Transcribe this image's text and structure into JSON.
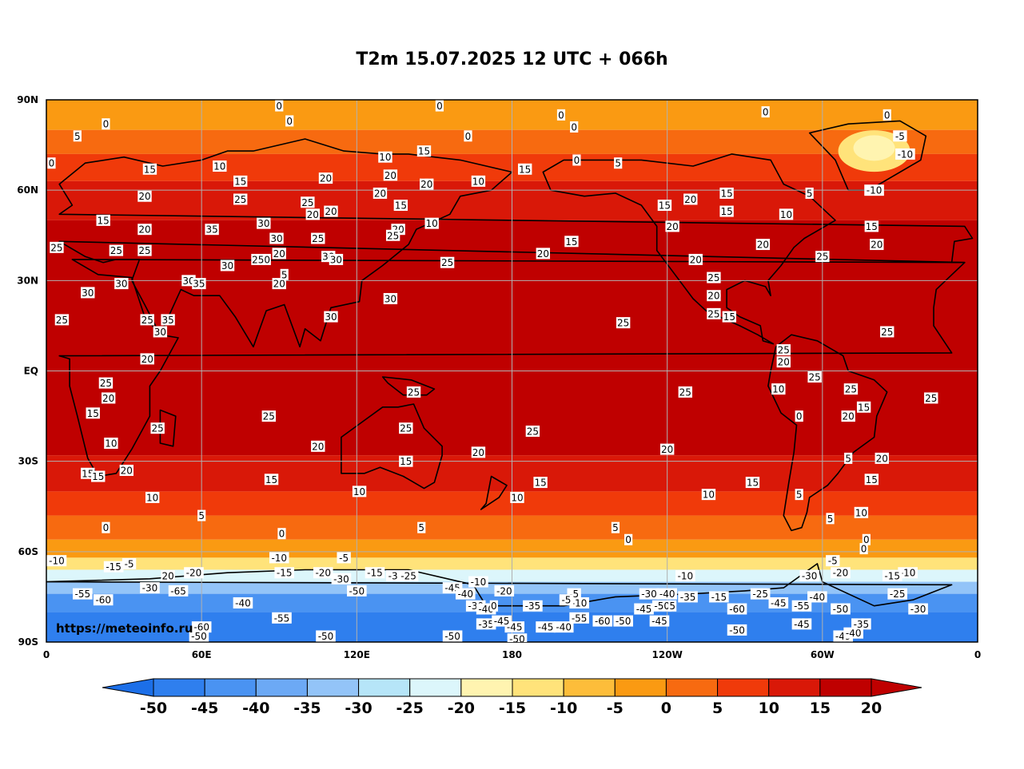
{
  "title": "T2m 15.07.2025 12 UTC + 066h",
  "watermark": "https://meteoinfo.ru",
  "lat_ticks": [
    "90N",
    "60N",
    "30N",
    "EQ",
    "30S",
    "60S",
    "90S"
  ],
  "lon_ticks": [
    "0",
    "60E",
    "120E",
    "180",
    "120W",
    "60W",
    "0"
  ],
  "colorbar": {
    "ticks": [
      "-50",
      "-45",
      "-40",
      "-35",
      "-30",
      "-25",
      "-20",
      "-15",
      "-10",
      "-5",
      "0",
      "5",
      "10",
      "15",
      "20"
    ],
    "colors": [
      "#1c6fe8",
      "#2f7fee",
      "#4a93f2",
      "#6ca9f5",
      "#93c4f8",
      "#b6e5f8",
      "#dcf6fb",
      "#fff4b0",
      "#ffe37a",
      "#fdbd3a",
      "#fa9a12",
      "#f76a10",
      "#f03a0a",
      "#d91808",
      "#bf0000"
    ],
    "under_color": "#1c6fe8",
    "over_color": "#bf0000"
  },
  "map_labels": [
    {
      "t": "0",
      "lon": 90,
      "lat": 88
    },
    {
      "t": "0",
      "lon": 152,
      "lat": 88
    },
    {
      "t": "0",
      "lon": -161,
      "lat": 85
    },
    {
      "t": "0",
      "lon": -82,
      "lat": 86
    },
    {
      "t": "0",
      "lon": -35,
      "lat": 85
    },
    {
      "t": "0",
      "lon": 23,
      "lat": 82
    },
    {
      "t": "0",
      "lon": 94,
      "lat": 83
    },
    {
      "t": "0",
      "lon": 163,
      "lat": 78
    },
    {
      "t": "0",
      "lon": -156,
      "lat": 81
    },
    {
      "t": "5",
      "lon": 12,
      "lat": 78
    },
    {
      "t": "-5",
      "lon": -30,
      "lat": 78
    },
    {
      "t": "-10",
      "lon": -28,
      "lat": 72
    },
    {
      "t": "0",
      "lon": 2,
      "lat": 69
    },
    {
      "t": "15",
      "lon": 40,
      "lat": 67
    },
    {
      "t": "10",
      "lon": 67,
      "lat": 68
    },
    {
      "t": "15",
      "lon": 75,
      "lat": 63
    },
    {
      "t": "10",
      "lon": 131,
      "lat": 71
    },
    {
      "t": "15",
      "lon": 146,
      "lat": 73
    },
    {
      "t": "20",
      "lon": 133,
      "lat": 65
    },
    {
      "t": "20",
      "lon": 147,
      "lat": 62
    },
    {
      "t": "10",
      "lon": 167,
      "lat": 63
    },
    {
      "t": "15",
      "lon": -175,
      "lat": 67
    },
    {
      "t": "0",
      "lon": -155,
      "lat": 70
    },
    {
      "t": "5",
      "lon": -139,
      "lat": 69
    },
    {
      "t": "15",
      "lon": -121,
      "lat": 55
    },
    {
      "t": "20",
      "lon": -111,
      "lat": 57
    },
    {
      "t": "15",
      "lon": -97,
      "lat": 59
    },
    {
      "t": "15",
      "lon": -97,
      "lat": 53
    },
    {
      "t": "5",
      "lon": -65,
      "lat": 59
    },
    {
      "t": "-10",
      "lon": -40,
      "lat": 60
    },
    {
      "t": "10",
      "lon": -74,
      "lat": 52
    },
    {
      "t": "15",
      "lon": -41,
      "lat": 48
    },
    {
      "t": "20",
      "lon": -39,
      "lat": 42
    },
    {
      "t": "20",
      "lon": -83,
      "lat": 42
    },
    {
      "t": "25",
      "lon": -60,
      "lat": 38
    },
    {
      "t": "20",
      "lon": -118,
      "lat": 48
    },
    {
      "t": "20",
      "lon": -109,
      "lat": 37
    },
    {
      "t": "15",
      "lon": -157,
      "lat": 43
    },
    {
      "t": "20",
      "lon": -168,
      "lat": 39
    },
    {
      "t": "25",
      "lon": 155,
      "lat": 36
    },
    {
      "t": "10",
      "lon": 149,
      "lat": 49
    },
    {
      "t": "20",
      "lon": 38,
      "lat": 58
    },
    {
      "t": "15",
      "lon": 22,
      "lat": 50
    },
    {
      "t": "20",
      "lon": 38,
      "lat": 47
    },
    {
      "t": "25",
      "lon": 4,
      "lat": 41
    },
    {
      "t": "25",
      "lon": 27,
      "lat": 40
    },
    {
      "t": "25",
      "lon": 38,
      "lat": 40
    },
    {
      "t": "35",
      "lon": 64,
      "lat": 47
    },
    {
      "t": "25",
      "lon": 75,
      "lat": 57
    },
    {
      "t": "30",
      "lon": 84,
      "lat": 49
    },
    {
      "t": "30",
      "lon": 89,
      "lat": 44
    },
    {
      "t": "20",
      "lon": 90,
      "lat": 39
    },
    {
      "t": "250",
      "lon": 83,
      "lat": 37
    },
    {
      "t": "30",
      "lon": 70,
      "lat": 35
    },
    {
      "t": "20",
      "lon": 90,
      "lat": 29
    },
    {
      "t": "5",
      "lon": 92,
      "lat": 32
    },
    {
      "t": "25",
      "lon": 101,
      "lat": 56
    },
    {
      "t": "20",
      "lon": 103,
      "lat": 52
    },
    {
      "t": "20",
      "lon": 110,
      "lat": 53
    },
    {
      "t": "25",
      "lon": 105,
      "lat": 44
    },
    {
      "t": "30",
      "lon": 109,
      "lat": 38
    },
    {
      "t": "30",
      "lon": 112,
      "lat": 37
    },
    {
      "t": "20",
      "lon": 108,
      "lat": 64
    },
    {
      "t": "20",
      "lon": 129,
      "lat": 59
    },
    {
      "t": "15",
      "lon": 137,
      "lat": 55
    },
    {
      "t": "20",
      "lon": 136,
      "lat": 47
    },
    {
      "t": "25",
      "lon": 134,
      "lat": 45
    },
    {
      "t": "30",
      "lon": 16,
      "lat": 26
    },
    {
      "t": "30",
      "lon": 29,
      "lat": 29
    },
    {
      "t": "30",
      "lon": 55,
      "lat": 30
    },
    {
      "t": "35",
      "lon": 59,
      "lat": 29
    },
    {
      "t": "25",
      "lon": 6,
      "lat": 17
    },
    {
      "t": "25",
      "lon": 39,
      "lat": 17
    },
    {
      "t": "35",
      "lon": 47,
      "lat": 17
    },
    {
      "t": "30",
      "lon": 44,
      "lat": 13
    },
    {
      "t": "30",
      "lon": 110,
      "lat": 18
    },
    {
      "t": "30",
      "lon": 133,
      "lat": 24
    },
    {
      "t": "20",
      "lon": 39,
      "lat": 4
    },
    {
      "t": "25",
      "lon": 23,
      "lat": -4
    },
    {
      "t": "20",
      "lon": 24,
      "lat": -9
    },
    {
      "t": "15",
      "lon": 18,
      "lat": -14
    },
    {
      "t": "25",
      "lon": 43,
      "lat": -19
    },
    {
      "t": "10",
      "lon": 25,
      "lat": -24
    },
    {
      "t": "15",
      "lon": 16,
      "lat": -34
    },
    {
      "t": "15",
      "lon": 20,
      "lat": -35
    },
    {
      "t": "20",
      "lon": 31,
      "lat": -33
    },
    {
      "t": "10",
      "lon": 41,
      "lat": -42
    },
    {
      "t": "0",
      "lon": 23,
      "lat": -52
    },
    {
      "t": "5",
      "lon": 60,
      "lat": -48
    },
    {
      "t": "25",
      "lon": 86,
      "lat": -15
    },
    {
      "t": "20",
      "lon": 105,
      "lat": -25
    },
    {
      "t": "15",
      "lon": 87,
      "lat": -36
    },
    {
      "t": "10",
      "lon": 121,
      "lat": -40
    },
    {
      "t": "25",
      "lon": 142,
      "lat": -7
    },
    {
      "t": "25",
      "lon": 139,
      "lat": -19
    },
    {
      "t": "15",
      "lon": 139,
      "lat": -30
    },
    {
      "t": "20",
      "lon": 167,
      "lat": -27
    },
    {
      "t": "25",
      "lon": -172,
      "lat": -20
    },
    {
      "t": "15",
      "lon": -169,
      "lat": -37
    },
    {
      "t": "10",
      "lon": -178,
      "lat": -42
    },
    {
      "t": "5",
      "lon": 145,
      "lat": -52
    },
    {
      "t": "0",
      "lon": 91,
      "lat": -54
    },
    {
      "t": "25",
      "lon": -137,
      "lat": 16
    },
    {
      "t": "25",
      "lon": -113,
      "lat": -7
    },
    {
      "t": "20",
      "lon": -120,
      "lat": -26
    },
    {
      "t": "5",
      "lon": -140,
      "lat": -52
    },
    {
      "t": "0",
      "lon": -135,
      "lat": -56
    },
    {
      "t": "15",
      "lon": -87,
      "lat": -37
    },
    {
      "t": "10",
      "lon": -104,
      "lat": -41
    },
    {
      "t": "25",
      "lon": -102,
      "lat": 31
    },
    {
      "t": "20",
      "lon": -102,
      "lat": 25
    },
    {
      "t": "25",
      "lon": -102,
      "lat": 19
    },
    {
      "t": "15",
      "lon": -96,
      "lat": 18
    },
    {
      "t": "25",
      "lon": -75,
      "lat": 7
    },
    {
      "t": "20",
      "lon": -75,
      "lat": 3
    },
    {
      "t": "25",
      "lon": -63,
      "lat": -2
    },
    {
      "t": "10",
      "lon": -77,
      "lat": -6
    },
    {
      "t": "0",
      "lon": -69,
      "lat": -15
    },
    {
      "t": "25",
      "lon": -49,
      "lat": -6
    },
    {
      "t": "20",
      "lon": -50,
      "lat": -15
    },
    {
      "t": "15",
      "lon": -44,
      "lat": -12
    },
    {
      "t": "20",
      "lon": -37,
      "lat": -29
    },
    {
      "t": "5",
      "lon": -50,
      "lat": -29
    },
    {
      "t": "15",
      "lon": -41,
      "lat": -36
    },
    {
      "t": "5",
      "lon": -69,
      "lat": -41
    },
    {
      "t": "5",
      "lon": -57,
      "lat": -49
    },
    {
      "t": "10",
      "lon": -45,
      "lat": -47
    },
    {
      "t": "0",
      "lon": -43,
      "lat": -56
    },
    {
      "t": "25",
      "lon": -35,
      "lat": 13
    },
    {
      "t": "25",
      "lon": -18,
      "lat": -9
    },
    {
      "t": "-10",
      "lon": 4,
      "lat": -63
    },
    {
      "t": "-15",
      "lon": 26,
      "lat": -65
    },
    {
      "t": "-5",
      "lon": 32,
      "lat": -64
    },
    {
      "t": "20",
      "lon": 47,
      "lat": -68
    },
    {
      "t": "-20",
      "lon": 57,
      "lat": -67
    },
    {
      "t": "-10",
      "lon": 90,
      "lat": -62
    },
    {
      "t": "-5",
      "lon": 115,
      "lat": -62
    },
    {
      "t": "-15",
      "lon": 92,
      "lat": -67
    },
    {
      "t": "-20",
      "lon": 107,
      "lat": -67
    },
    {
      "t": "-30",
      "lon": 114,
      "lat": -69
    },
    {
      "t": "-15",
      "lon": 127,
      "lat": -67
    },
    {
      "t": "-25",
      "lon": 140,
      "lat": -68
    },
    {
      "t": "-3",
      "lon": 134,
      "lat": -68
    },
    {
      "t": "-55",
      "lon": 14,
      "lat": -74
    },
    {
      "t": "-60",
      "lon": 22,
      "lat": -76
    },
    {
      "t": "-30",
      "lon": 40,
      "lat": -72
    },
    {
      "t": "-65",
      "lon": 51,
      "lat": -73
    },
    {
      "t": "-40",
      "lon": 76,
      "lat": -77
    },
    {
      "t": "-50",
      "lon": 120,
      "lat": -73
    },
    {
      "t": "-55",
      "lon": 91,
      "lat": -82
    },
    {
      "t": "-60",
      "lon": 60,
      "lat": -85
    },
    {
      "t": "-50",
      "lon": 59,
      "lat": -88
    },
    {
      "t": "-50",
      "lon": 108,
      "lat": -88
    },
    {
      "t": "-45",
      "lon": 157,
      "lat": -72
    },
    {
      "t": "-40",
      "lon": 162,
      "lat": -74
    },
    {
      "t": "-10",
      "lon": 167,
      "lat": -70
    },
    {
      "t": "-20",
      "lon": 177,
      "lat": -73
    },
    {
      "t": "-35",
      "lon": -172,
      "lat": -78
    },
    {
      "t": "-45",
      "lon": -179,
      "lat": -85
    },
    {
      "t": "-30",
      "lon": 166,
      "lat": -78
    },
    {
      "t": "-40",
      "lon": 170,
      "lat": -79
    },
    {
      "t": "0",
      "lon": 173,
      "lat": -78
    },
    {
      "t": "-35",
      "lon": 170,
      "lat": -84
    },
    {
      "t": "-45",
      "lon": 176,
      "lat": -83
    },
    {
      "t": "-50",
      "lon": 157,
      "lat": -88
    },
    {
      "t": "-50",
      "lon": -178,
      "lat": -89
    },
    {
      "t": "-45",
      "lon": -167,
      "lat": -85
    },
    {
      "t": "-40",
      "lon": -160,
      "lat": -85
    },
    {
      "t": "-5",
      "lon": -156,
      "lat": -74
    },
    {
      "t": "-10",
      "lon": -154,
      "lat": -77
    },
    {
      "t": "-5",
      "lon": -159,
      "lat": -76
    },
    {
      "t": "-55",
      "lon": -154,
      "lat": -82
    },
    {
      "t": "-60",
      "lon": -145,
      "lat": -83
    },
    {
      "t": "-50",
      "lon": -137,
      "lat": -83
    },
    {
      "t": "-45",
      "lon": -129,
      "lat": -79
    },
    {
      "t": "-45",
      "lon": -123,
      "lat": -83
    },
    {
      "t": "-30",
      "lon": -127,
      "lat": -74
    },
    {
      "t": "-40",
      "lon": -120,
      "lat": -74
    },
    {
      "t": "-50",
      "lon": -122,
      "lat": -78
    },
    {
      "t": "5",
      "lon": -118,
      "lat": -78
    },
    {
      "t": "-35",
      "lon": -112,
      "lat": -75
    },
    {
      "t": "-15",
      "lon": -100,
      "lat": -75
    },
    {
      "t": "-10",
      "lon": -113,
      "lat": -68
    },
    {
      "t": "-25",
      "lon": -84,
      "lat": -74
    },
    {
      "t": "-45",
      "lon": -77,
      "lat": -77
    },
    {
      "t": "-55",
      "lon": -68,
      "lat": -78
    },
    {
      "t": "-40",
      "lon": -62,
      "lat": -75
    },
    {
      "t": "-60",
      "lon": -93,
      "lat": -79
    },
    {
      "t": "-50",
      "lon": -93,
      "lat": -86
    },
    {
      "t": "-45",
      "lon": -68,
      "lat": -84
    },
    {
      "t": "-50",
      "lon": -53,
      "lat": -79
    },
    {
      "t": "-49",
      "lon": -52,
      "lat": -88
    },
    {
      "t": "-40",
      "lon": -48,
      "lat": -87
    },
    {
      "t": "-35",
      "lon": -45,
      "lat": -84
    },
    {
      "t": "-30",
      "lon": -65,
      "lat": -68
    },
    {
      "t": "-20",
      "lon": -53,
      "lat": -67
    },
    {
      "t": "-5",
      "lon": -56,
      "lat": -63
    },
    {
      "t": "-10",
      "lon": -27,
      "lat": -67
    },
    {
      "t": "-15",
      "lon": -33,
      "lat": -68
    },
    {
      "t": "-25",
      "lon": -31,
      "lat": -74
    },
    {
      "t": "-30",
      "lon": -23,
      "lat": -79
    },
    {
      "t": "0",
      "lon": -44,
      "lat": -59
    }
  ]
}
